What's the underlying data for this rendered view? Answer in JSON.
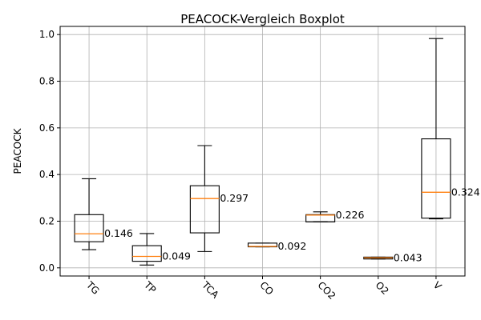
{
  "chart_data": {
    "type": "boxplot",
    "title": "PEACOCK-Vergleich Boxplot",
    "xlabel": "",
    "ylabel": "PEACOCK",
    "ylim": [
      -0.035,
      1.035
    ],
    "yticks": [
      "0.0",
      "0.2",
      "0.4",
      "0.6",
      "0.8",
      "1.0"
    ],
    "grid": true,
    "median_color": "#ff7f0e",
    "box_color": "#000000",
    "categories": [
      "TG",
      "TP",
      "TCA",
      "CO",
      "CO2",
      "O2",
      "V"
    ],
    "boxes": [
      {
        "category": "TG",
        "whisker_low": 0.078,
        "q1": 0.112,
        "median": 0.146,
        "q3": 0.228,
        "whisker_high": 0.382,
        "median_label": "0.146"
      },
      {
        "category": "TP",
        "whisker_low": 0.012,
        "q1": 0.028,
        "median": 0.049,
        "q3": 0.095,
        "whisker_high": 0.147,
        "median_label": "0.049"
      },
      {
        "category": "TCA",
        "whisker_low": 0.07,
        "q1": 0.15,
        "median": 0.297,
        "q3": 0.352,
        "whisker_high": 0.524,
        "median_label": "0.297"
      },
      {
        "category": "CO",
        "whisker_low": 0.09,
        "q1": 0.09,
        "median": 0.092,
        "q3": 0.106,
        "whisker_high": 0.106,
        "median_label": "0.092"
      },
      {
        "category": "CO2",
        "whisker_low": 0.197,
        "q1": 0.197,
        "median": 0.226,
        "q3": 0.228,
        "whisker_high": 0.24,
        "median_label": "0.226"
      },
      {
        "category": "O2",
        "whisker_low": 0.038,
        "q1": 0.038,
        "median": 0.043,
        "q3": 0.046,
        "whisker_high": 0.046,
        "median_label": "0.043"
      },
      {
        "category": "V",
        "whisker_low": 0.21,
        "q1": 0.213,
        "median": 0.324,
        "q3": 0.553,
        "whisker_high": 0.983,
        "median_label": "0.324"
      }
    ]
  }
}
